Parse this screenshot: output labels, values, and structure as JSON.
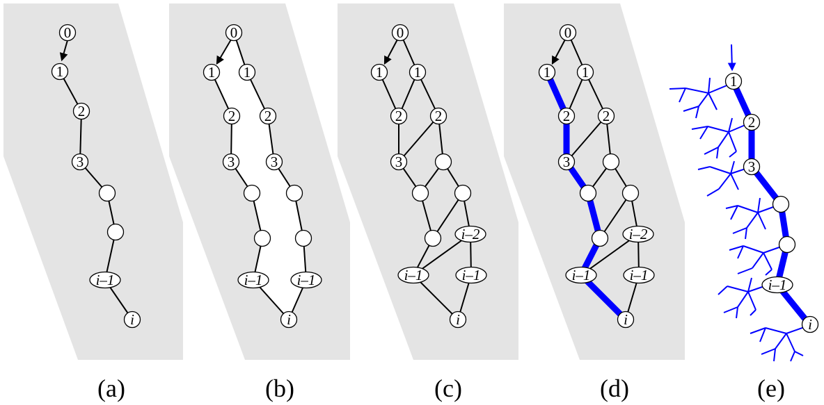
{
  "colors": {
    "region": "#e4e4e4",
    "edge": "#000000",
    "highlight": "#0000ff",
    "node_fill": "#ffffff"
  },
  "captions": [
    "(a)",
    "(b)",
    "(c)",
    "(d)",
    "(e)"
  ],
  "panels": [
    {
      "caption": "(a)",
      "nodes": [
        {
          "label": "0"
        },
        {
          "label": "1"
        },
        {
          "label": "2"
        },
        {
          "label": "3"
        },
        {
          "label": ""
        },
        {
          "label": ""
        },
        {
          "label": "i–1",
          "italic": true
        },
        {
          "label": "i",
          "italic": true
        }
      ]
    },
    {
      "caption": "(b)",
      "nodes": [
        {
          "label": "0"
        },
        {
          "label": "1"
        },
        {
          "label": "1"
        },
        {
          "label": "2"
        },
        {
          "label": "2"
        },
        {
          "label": "3"
        },
        {
          "label": "3"
        },
        {
          "label": ""
        },
        {
          "label": ""
        },
        {
          "label": ""
        },
        {
          "label": ""
        },
        {
          "label": "i–1",
          "italic": true
        },
        {
          "label": "i–1",
          "italic": true
        },
        {
          "label": "i",
          "italic": true
        }
      ]
    },
    {
      "caption": "(c)",
      "nodes": [
        {
          "label": "0"
        },
        {
          "label": "1"
        },
        {
          "label": "1"
        },
        {
          "label": "2"
        },
        {
          "label": "2"
        },
        {
          "label": "3"
        },
        {
          "label": ""
        },
        {
          "label": ""
        },
        {
          "label": ""
        },
        {
          "label": ""
        },
        {
          "label": "i–2",
          "italic": true
        },
        {
          "label": "i–1",
          "italic": true
        },
        {
          "label": "i–1",
          "italic": true
        },
        {
          "label": "i",
          "italic": true
        }
      ]
    },
    {
      "caption": "(d)",
      "nodes": [
        {
          "label": "0"
        },
        {
          "label": "1"
        },
        {
          "label": "1"
        },
        {
          "label": "2"
        },
        {
          "label": "2"
        },
        {
          "label": "3"
        },
        {
          "label": ""
        },
        {
          "label": ""
        },
        {
          "label": ""
        },
        {
          "label": ""
        },
        {
          "label": "i–2",
          "italic": true
        },
        {
          "label": "i–1",
          "italic": true
        },
        {
          "label": "i–1",
          "italic": true
        },
        {
          "label": "i",
          "italic": true
        }
      ]
    },
    {
      "caption": "(e)",
      "nodes": [
        {
          "label": "1"
        },
        {
          "label": "2"
        },
        {
          "label": "3"
        },
        {
          "label": ""
        },
        {
          "label": ""
        },
        {
          "label": "i–1",
          "italic": true
        },
        {
          "label": "i",
          "italic": true
        }
      ]
    }
  ]
}
